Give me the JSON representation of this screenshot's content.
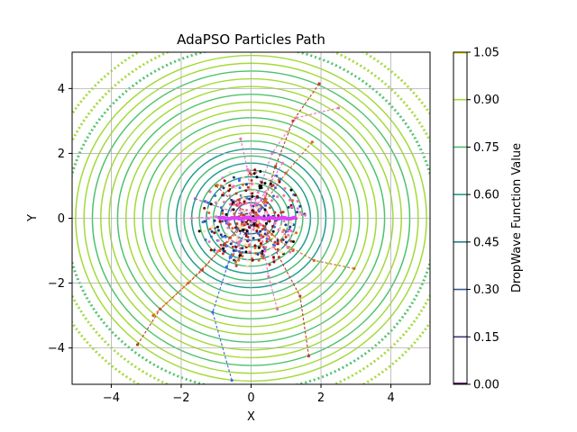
{
  "chart_data": {
    "type": "contour",
    "title": "AdaPSO Particles Path",
    "xlabel": "X",
    "ylabel": "Y",
    "xlim": [
      -5.12,
      5.12
    ],
    "ylim": [
      -5.12,
      5.12
    ],
    "xticks": [
      -4,
      -2,
      0,
      2,
      4
    ],
    "yticks": [
      -4,
      -2,
      0,
      2,
      4
    ],
    "xtick_labels": [
      "−4",
      "−2",
      "0",
      "2",
      "4"
    ],
    "ytick_labels": [
      "−4",
      "−2",
      "0",
      "2",
      "4"
    ],
    "grid": true,
    "function": "DropWave",
    "colorbar": {
      "label": "DropWave Function Value",
      "levels": [
        0.0,
        0.15,
        0.3,
        0.45,
        0.6,
        0.75,
        0.9,
        1.05
      ],
      "tick_labels": [
        "0.00",
        "0.15",
        "0.30",
        "0.45",
        "0.60",
        "0.75",
        "0.90",
        "1.05"
      ],
      "colors": [
        "#440154",
        "#46327e",
        "#365c8d",
        "#277f8e",
        "#1fa187",
        "#4ac16d",
        "#a0da39",
        "#fde725"
      ]
    },
    "contour_ring_radii": [
      0.48,
      0.68,
      0.88,
      1.08,
      1.28,
      1.48,
      1.7,
      1.92,
      2.14,
      2.38,
      2.62,
      2.86,
      3.1,
      3.34,
      3.58,
      3.82,
      4.06,
      4.3,
      4.54,
      4.78,
      5.02,
      5.3,
      5.65,
      6.05
    ],
    "paths": [
      {
        "color": "#c0392b",
        "points": [
          [
            1.95,
            4.15
          ],
          [
            1.2,
            3.0
          ],
          [
            0.7,
            1.6
          ],
          [
            0.4,
            0.6
          ],
          [
            0.1,
            0.1
          ]
        ]
      },
      {
        "color": "#e377c2",
        "points": [
          [
            2.5,
            3.4
          ],
          [
            1.3,
            3.1
          ],
          [
            0.6,
            2.0
          ],
          [
            0.2,
            0.8
          ],
          [
            0.0,
            0.1
          ]
        ]
      },
      {
        "color": "#c0392b",
        "points": [
          [
            1.65,
            -4.25
          ],
          [
            1.4,
            -2.4
          ],
          [
            0.8,
            -1.2
          ],
          [
            0.4,
            -0.3
          ],
          [
            0.1,
            0.0
          ]
        ]
      },
      {
        "color": "#4169e1",
        "points": [
          [
            -0.55,
            -5.0
          ],
          [
            -1.1,
            -2.9
          ],
          [
            -0.6,
            -1.2
          ],
          [
            -0.2,
            -0.2
          ],
          [
            0.0,
            0.0
          ]
        ]
      },
      {
        "color": "#c0392b",
        "points": [
          [
            -3.25,
            -3.9
          ],
          [
            -2.6,
            -2.8
          ],
          [
            -1.4,
            -1.6
          ],
          [
            -0.6,
            -0.6
          ],
          [
            -0.1,
            0.0
          ]
        ]
      },
      {
        "color": "#d2691e",
        "points": [
          [
            -2.8,
            -3.0
          ],
          [
            -1.8,
            -2.0
          ],
          [
            -0.9,
            -1.0
          ],
          [
            -0.2,
            -0.2
          ]
        ]
      },
      {
        "color": "#e377c2",
        "points": [
          [
            0.75,
            -2.8
          ],
          [
            0.5,
            -1.8
          ],
          [
            0.3,
            -0.6
          ],
          [
            0.0,
            0.0
          ]
        ]
      },
      {
        "color": "#d2691e",
        "points": [
          [
            2.95,
            -1.55
          ],
          [
            1.8,
            -1.3
          ],
          [
            0.8,
            -0.7
          ],
          [
            0.2,
            -0.1
          ]
        ]
      },
      {
        "color": "#e377c2",
        "points": [
          [
            -1.7,
            0.0
          ],
          [
            -1.0,
            0.05
          ],
          [
            -0.4,
            0.0
          ],
          [
            0.0,
            0.0
          ]
        ]
      },
      {
        "color": "#e377c2",
        "points": [
          [
            -0.3,
            2.45
          ],
          [
            -0.1,
            1.5
          ],
          [
            0.0,
            0.6
          ],
          [
            0.0,
            0.0
          ]
        ]
      },
      {
        "color": "#d2691e",
        "points": [
          [
            1.75,
            2.35
          ],
          [
            1.0,
            1.4
          ],
          [
            0.4,
            0.5
          ],
          [
            0.0,
            0.0
          ]
        ]
      },
      {
        "color": "#9467bd",
        "points": [
          [
            -1.6,
            0.6
          ],
          [
            -0.8,
            0.3
          ],
          [
            -0.2,
            0.1
          ]
        ]
      },
      {
        "color": "#4169e1",
        "points": [
          [
            -0.7,
            -1.5
          ],
          [
            -0.3,
            -0.7
          ],
          [
            0.0,
            -0.1
          ]
        ]
      },
      {
        "color": "#c0392b",
        "points": [
          [
            -1.0,
            1.0
          ],
          [
            -0.4,
            0.4
          ],
          [
            0.0,
            0.0
          ]
        ]
      },
      {
        "color": "#d2691e",
        "points": [
          [
            1.2,
            -1.0
          ],
          [
            0.6,
            -0.5
          ],
          [
            0.1,
            0.0
          ]
        ]
      },
      {
        "color": "#e377c2",
        "points": [
          [
            0.9,
            1.7
          ],
          [
            0.4,
            0.8
          ],
          [
            0.0,
            0.1
          ]
        ]
      }
    ],
    "particle_colors": [
      "#c0392b",
      "#e377c2",
      "#ffe4b5",
      "#1f3a93",
      "#8b0000",
      "#f5deb3",
      "#ff69b4",
      "#000000",
      "#d2691e",
      "#4169e1"
    ]
  }
}
